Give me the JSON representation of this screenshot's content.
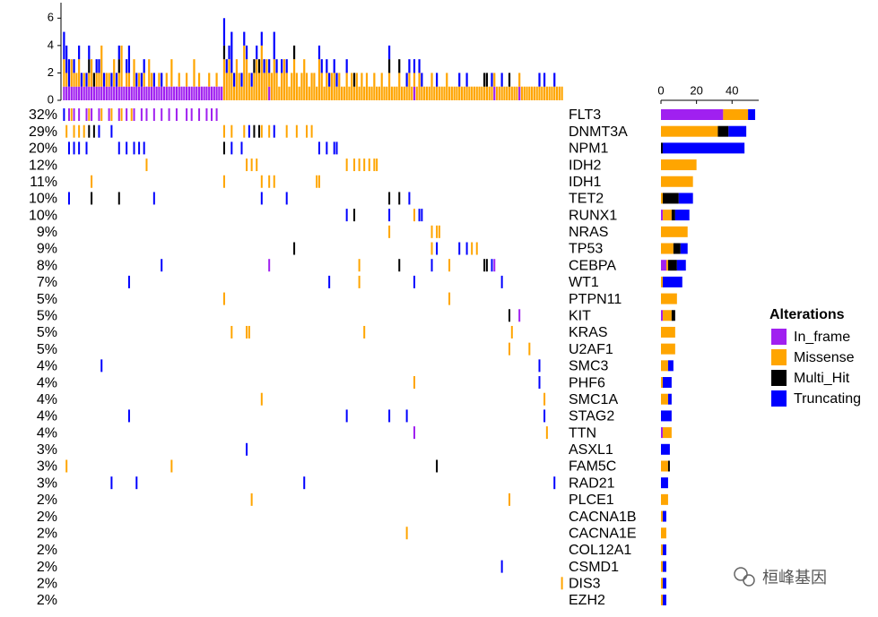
{
  "chart_data": {
    "type": "oncoplot",
    "genes": [
      "FLT3",
      "DNMT3A",
      "NPM1",
      "IDH2",
      "IDH1",
      "TET2",
      "RUNX1",
      "NRAS",
      "TP53",
      "CEBPA",
      "WT1",
      "PTPN11",
      "KIT",
      "KRAS",
      "U2AF1",
      "SMC3",
      "PHF6",
      "SMC1A",
      "STAG2",
      "TTN",
      "ASXL1",
      "FAM5C",
      "RAD21",
      "PLCE1",
      "CACNA1B",
      "CACNA1E",
      "COL12A1",
      "CSMD1",
      "DIS3",
      "EZH2"
    ],
    "percent": [
      32,
      29,
      20,
      12,
      11,
      10,
      10,
      9,
      9,
      8,
      7,
      5,
      5,
      5,
      5,
      4,
      4,
      4,
      4,
      4,
      3,
      3,
      3,
      2,
      2,
      2,
      2,
      2,
      2,
      2
    ],
    "percent_labels": [
      "32%",
      "29%",
      "20%",
      "12%",
      "11%",
      "10%",
      "10%",
      "9%",
      "9%",
      "8%",
      "7%",
      "5%",
      "5%",
      "5%",
      "5%",
      "4%",
      "4%",
      "4%",
      "4%",
      "4%",
      "3%",
      "3%",
      "3%",
      "2%",
      "2%",
      "2%",
      "2%",
      "2%",
      "2%",
      "2%"
    ],
    "legend_title": "Alterations",
    "top_ylim": [
      0,
      7
    ],
    "top_yticks": [
      0,
      2,
      4,
      6
    ],
    "count_xlim": [
      0,
      55
    ],
    "count_xticks": [
      0,
      20,
      40
    ],
    "watermark": "桓峰基因",
    "series": [
      {
        "name": "In_frame",
        "color": "#a020f0",
        "top": [
          1,
          1,
          1,
          1,
          1,
          1,
          1,
          1,
          1,
          1,
          1,
          1,
          1,
          1,
          1,
          1,
          1,
          1,
          1,
          1,
          1,
          1,
          1,
          1,
          1,
          1,
          1,
          1,
          1,
          1,
          1,
          1,
          1,
          1,
          1,
          1,
          1,
          1,
          1,
          1,
          1,
          1,
          1,
          1,
          1,
          1,
          1,
          1,
          1,
          1,
          1,
          1,
          1,
          1,
          1,
          1,
          1,
          1,
          1,
          1,
          1,
          1,
          1,
          1,
          0,
          0,
          0,
          0,
          0,
          0,
          0,
          0,
          0,
          0,
          0,
          0,
          0,
          0,
          0,
          0,
          0,
          0,
          1,
          0,
          0,
          0,
          0,
          0,
          0,
          0,
          0,
          0,
          0,
          0,
          0,
          0,
          0,
          0,
          0,
          0,
          0,
          0,
          0,
          0,
          0,
          0,
          0,
          0,
          0,
          0,
          0,
          0,
          0,
          0,
          0,
          0,
          0,
          0,
          0,
          0,
          0,
          0,
          0,
          0,
          0,
          0,
          0,
          0,
          0,
          0,
          0,
          0,
          0,
          0,
          0,
          0,
          0,
          0,
          0,
          0,
          1,
          0,
          0,
          0,
          0,
          0,
          0,
          0,
          0,
          0,
          0,
          0,
          0,
          0,
          0,
          0,
          0,
          0,
          0,
          0,
          0,
          0,
          0,
          0,
          0,
          0,
          0,
          0,
          0,
          0,
          0,
          0,
          1,
          0,
          0,
          0,
          0,
          0,
          0,
          0,
          0,
          0,
          1,
          0,
          0,
          0,
          0,
          0,
          0,
          0,
          0,
          0,
          0,
          0,
          0,
          0,
          0,
          0,
          0,
          0
        ],
        "counts": [
          35,
          0,
          0,
          0,
          0,
          0,
          1,
          0,
          0,
          3,
          0,
          0,
          1,
          0,
          0,
          0,
          0,
          0,
          0,
          1,
          0,
          0,
          0,
          0,
          0,
          0,
          0,
          0,
          0,
          0
        ],
        "samples": [
          [
            2,
            4,
            6,
            9,
            11,
            14,
            18,
            22,
            25,
            28,
            31,
            33,
            36,
            39,
            42,
            45,
            49,
            51,
            54,
            57,
            59,
            61
          ],
          [],
          [],
          [],
          [],
          [],
          [],
          [],
          [],
          [
            82,
            172
          ],
          [],
          [],
          [
            182
          ],
          [],
          [],
          [],
          [],
          [],
          [],
          [
            140
          ],
          [],
          [],
          [],
          [],
          [],
          [],
          [],
          [],
          [],
          []
        ]
      },
      {
        "name": "Missense",
        "color": "#ffa500",
        "top": [
          2,
          1,
          0,
          2,
          1,
          1,
          2,
          0,
          1,
          0,
          1,
          2,
          0,
          1,
          1,
          3,
          0,
          1,
          1,
          0,
          2,
          0,
          1,
          3,
          0,
          1,
          1,
          0,
          2,
          0,
          1,
          0,
          1,
          0,
          2,
          1,
          0,
          0,
          1,
          0,
          0,
          1,
          0,
          2,
          0,
          0,
          1,
          0,
          0,
          1,
          0,
          0,
          2,
          0,
          1,
          0,
          0,
          0,
          1,
          0,
          0,
          1,
          0,
          0,
          3,
          2,
          3,
          2,
          1,
          3,
          2,
          1,
          4,
          3,
          2,
          1,
          2,
          3,
          2,
          4,
          2,
          3,
          1,
          2,
          3,
          2,
          1,
          2,
          3,
          2,
          1,
          2,
          3,
          2,
          1,
          2,
          3,
          2,
          1,
          2,
          2,
          1,
          3,
          2,
          1,
          2,
          1,
          2,
          2,
          1,
          2,
          1,
          1,
          2,
          1,
          2,
          1,
          2,
          1,
          2,
          1,
          2,
          1,
          1,
          2,
          1,
          1,
          2,
          1,
          1,
          2,
          1,
          1,
          1,
          2,
          1,
          1,
          1,
          2,
          1,
          1,
          1,
          2,
          1,
          1,
          1,
          1,
          2,
          1,
          1,
          1,
          1,
          1,
          2,
          1,
          1,
          1,
          1,
          1,
          1,
          1,
          1,
          1,
          1,
          1,
          1,
          1,
          1,
          1,
          1,
          1,
          1,
          1,
          1,
          1,
          1,
          1,
          1,
          1,
          1,
          1,
          1,
          1,
          1,
          1,
          1,
          1,
          1,
          1,
          1,
          1,
          1,
          1,
          1,
          1,
          1,
          1,
          1,
          1,
          1
        ],
        "counts": [
          14,
          32,
          0,
          20,
          18,
          1,
          5,
          15,
          7,
          1,
          1,
          9,
          5,
          8,
          8,
          4,
          1,
          4,
          0,
          5,
          0,
          4,
          0,
          4,
          1,
          3,
          1,
          1,
          1,
          1
        ],
        "samples": [
          [
            3,
            10,
            15,
            19,
            23,
            27
          ],
          [
            1,
            4,
            6,
            8,
            64,
            67,
            72,
            79,
            82,
            89,
            93,
            97,
            99
          ],
          [],
          [
            33,
            73,
            75,
            77,
            113,
            116,
            118,
            120,
            122,
            124,
            125
          ],
          [
            11,
            64,
            79,
            82,
            84,
            101,
            102
          ],
          [],
          [
            140
          ],
          [
            130,
            147,
            149,
            150
          ],
          [
            147,
            163,
            165
          ],
          [
            118,
            154
          ],
          [
            118
          ],
          [
            64,
            154
          ],
          [],
          [
            67,
            73,
            74,
            120,
            179
          ],
          [
            178,
            186
          ],
          [],
          [
            140
          ],
          [
            79,
            192
          ],
          [],
          [
            193
          ],
          [],
          [
            1,
            43
          ],
          [],
          [
            75,
            178
          ],
          [],
          [
            137
          ],
          [],
          [],
          [
            199
          ],
          []
        ]
      },
      {
        "name": "Multi_Hit",
        "color": "#000000",
        "top": [
          0,
          0,
          0,
          0,
          0,
          0,
          0,
          0,
          0,
          0,
          1,
          0,
          1,
          0,
          0,
          0,
          0,
          0,
          0,
          0,
          0,
          0,
          1,
          0,
          0,
          0,
          0,
          0,
          0,
          0,
          0,
          0,
          0,
          0,
          0,
          0,
          0,
          0,
          0,
          0,
          0,
          0,
          0,
          0,
          0,
          0,
          0,
          0,
          0,
          0,
          0,
          0,
          0,
          0,
          0,
          0,
          0,
          0,
          0,
          0,
          0,
          0,
          0,
          0,
          1,
          0,
          0,
          0,
          0,
          0,
          0,
          0,
          0,
          0,
          0,
          0,
          1,
          0,
          1,
          0,
          0,
          0,
          0,
          0,
          0,
          0,
          0,
          0,
          0,
          0,
          0,
          0,
          1,
          0,
          0,
          0,
          0,
          0,
          0,
          0,
          0,
          0,
          0,
          0,
          0,
          0,
          0,
          0,
          0,
          0,
          0,
          0,
          0,
          0,
          0,
          0,
          1,
          0,
          0,
          0,
          0,
          0,
          0,
          0,
          0,
          0,
          0,
          0,
          0,
          0,
          1,
          0,
          0,
          0,
          1,
          0,
          0,
          0,
          0,
          0,
          0,
          0,
          0,
          0,
          0,
          0,
          0,
          0,
          0,
          0,
          0,
          0,
          0,
          0,
          0,
          0,
          0,
          0,
          0,
          0,
          0,
          0,
          0,
          0,
          0,
          0,
          0,
          0,
          1,
          1,
          0,
          0,
          0,
          0,
          0,
          0,
          0,
          0,
          1,
          0,
          0,
          0,
          0,
          0,
          0,
          0,
          0,
          0,
          0,
          0,
          0,
          0,
          0,
          0,
          0,
          0,
          0,
          0,
          0,
          0
        ],
        "counts": [
          0,
          6,
          1,
          0,
          0,
          9,
          2,
          0,
          4,
          5,
          0,
          0,
          2,
          0,
          0,
          0,
          0,
          0,
          0,
          0,
          0,
          1,
          0,
          0,
          0,
          0,
          0,
          0,
          0,
          0
        ],
        "samples": [
          [],
          [
            10,
            12,
            76,
            78
          ],
          [
            64
          ],
          [],
          [],
          [
            11,
            22,
            130,
            134
          ],
          [
            116
          ],
          [],
          [
            92
          ],
          [
            134,
            168,
            169
          ],
          [],
          [],
          [
            178
          ],
          [],
          [],
          [],
          [],
          [],
          [],
          [],
          [],
          [
            149
          ],
          [],
          [],
          [],
          [],
          [],
          [],
          [],
          []
        ]
      },
      {
        "name": "Truncating",
        "color": "#0000ff",
        "top": [
          2,
          2,
          2,
          0,
          1,
          0,
          1,
          1,
          0,
          1,
          1,
          0,
          0,
          1,
          1,
          0,
          1,
          0,
          0,
          1,
          0,
          1,
          1,
          0,
          0,
          1,
          2,
          0,
          0,
          1,
          0,
          1,
          1,
          0,
          0,
          0,
          1,
          0,
          0,
          1,
          0,
          0,
          0,
          0,
          0,
          0,
          0,
          0,
          0,
          0,
          0,
          0,
          0,
          0,
          0,
          0,
          0,
          0,
          0,
          0,
          0,
          0,
          0,
          0,
          2,
          1,
          1,
          3,
          1,
          0,
          0,
          1,
          1,
          1,
          0,
          1,
          0,
          1,
          0,
          1,
          1,
          0,
          1,
          0,
          2,
          1,
          0,
          1,
          0,
          1,
          0,
          0,
          0,
          0,
          0,
          0,
          0,
          0,
          0,
          0,
          0,
          0,
          1,
          1,
          0,
          1,
          1,
          0,
          1,
          1,
          0,
          0,
          0,
          1,
          0,
          0,
          0,
          0,
          0,
          0,
          0,
          0,
          0,
          0,
          0,
          0,
          0,
          0,
          0,
          0,
          1,
          0,
          0,
          0,
          0,
          0,
          0,
          1,
          1,
          0,
          1,
          0,
          1,
          1,
          0,
          0,
          0,
          0,
          0,
          1,
          0,
          0,
          0,
          0,
          0,
          0,
          0,
          0,
          1,
          0,
          0,
          1,
          0,
          0,
          0,
          0,
          0,
          0,
          0,
          0,
          0,
          1,
          0,
          0,
          0,
          1,
          0,
          0,
          0,
          0,
          0,
          0,
          0,
          0,
          0,
          0,
          0,
          0,
          0,
          0,
          1,
          0,
          1,
          0,
          0,
          0,
          1,
          0,
          0,
          0
        ],
        "counts": [
          4,
          10,
          46,
          0,
          0,
          8,
          8,
          0,
          4,
          5,
          11,
          0,
          0,
          0,
          0,
          3,
          5,
          2,
          6,
          0,
          5,
          0,
          4,
          0,
          2,
          0,
          2,
          2,
          2,
          2
        ],
        "samples": [
          [
            0
          ],
          [
            14,
            19,
            74,
            84
          ],
          [
            2,
            4,
            6,
            9,
            22,
            25,
            28,
            30,
            32,
            67,
            71,
            102,
            105,
            108,
            109
          ],
          [],
          [],
          [
            2,
            36,
            79,
            89,
            138
          ],
          [
            113,
            130,
            142,
            143
          ],
          [],
          [
            149,
            158,
            161
          ],
          [
            39,
            147,
            171
          ],
          [
            26,
            106,
            140,
            175
          ],
          [],
          [],
          [],
          [],
          [
            15,
            190
          ],
          [
            190
          ],
          [],
          [
            26,
            113,
            130,
            137,
            192
          ],
          [],
          [
            73
          ],
          [],
          [
            19,
            29,
            96,
            196
          ],
          [],
          [],
          [],
          [],
          [
            175
          ],
          [],
          []
        ]
      }
    ]
  }
}
